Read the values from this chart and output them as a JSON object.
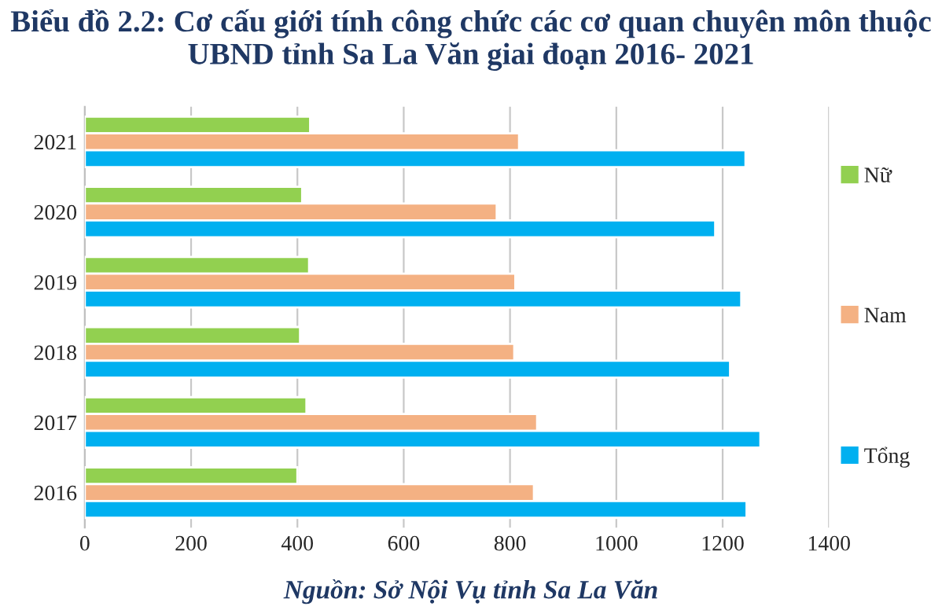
{
  "chart_data": {
    "type": "bar",
    "orientation": "horizontal",
    "title": "Biểu đồ 2.2: Cơ cấu giới tính công chức các cơ quan chuyên môn thuộc UBND tỉnh Sa La Văn giai đoạn 2016- 2021",
    "categories": [
      "2021",
      "2020",
      "2019",
      "2018",
      "2017",
      "2016"
    ],
    "series": [
      {
        "name": "Nữ",
        "color": "#92d050",
        "values": [
          424,
          409,
          422,
          405,
          417,
          400
        ]
      },
      {
        "name": "Nam",
        "color": "#f4b183",
        "values": [
          817,
          775,
          810,
          808,
          851,
          845
        ]
      },
      {
        "name": "Tổng",
        "color": "#00b0f0",
        "values": [
          1243,
          1186,
          1235,
          1214,
          1271,
          1245
        ]
      }
    ],
    "xlim": [
      0,
      1400
    ],
    "xticks": [
      0,
      200,
      400,
      600,
      800,
      1000,
      1200,
      1400
    ],
    "grid": "x",
    "legend": "right",
    "annotations": [
      "Nguồn: Sở Nội Vụ tỉnh Sa La Văn"
    ]
  }
}
